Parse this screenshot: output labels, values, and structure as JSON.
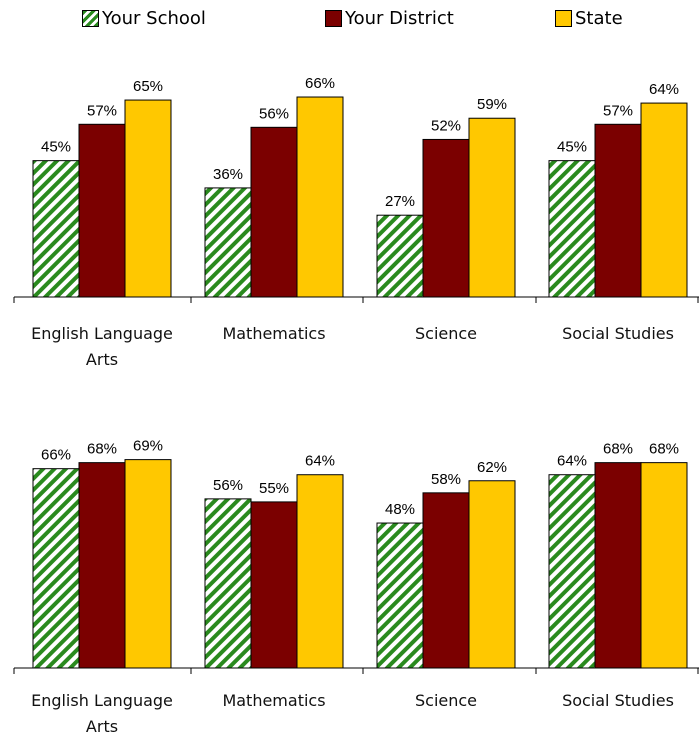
{
  "legend": {
    "items": [
      {
        "label": "Your School",
        "color": "#2a8a1e"
      },
      {
        "label": "Your District",
        "color": "#7b0000"
      },
      {
        "label": "State",
        "color": "#ffc800"
      }
    ]
  },
  "chart_data": [
    {
      "type": "bar",
      "categories": [
        "English Language Arts",
        "Mathematics",
        "Science",
        "Social Studies"
      ],
      "series": [
        {
          "name": "Your School",
          "values": [
            45,
            36,
            27,
            45
          ],
          "color": "#2a8a1e",
          "pattern": "diagonal-stripes"
        },
        {
          "name": "Your District",
          "values": [
            57,
            56,
            52,
            57
          ],
          "color": "#7b0000"
        },
        {
          "name": "State",
          "values": [
            65,
            66,
            59,
            64
          ],
          "color": "#ffc800"
        }
      ],
      "value_suffix": "%",
      "ylim": [
        0,
        100
      ],
      "grid": false
    },
    {
      "type": "bar",
      "categories": [
        "English Language Arts",
        "Mathematics",
        "Science",
        "Social Studies"
      ],
      "series": [
        {
          "name": "Your School",
          "values": [
            66,
            56,
            48,
            64
          ],
          "color": "#2a8a1e",
          "pattern": "diagonal-stripes"
        },
        {
          "name": "Your District",
          "values": [
            68,
            55,
            58,
            68
          ],
          "color": "#7b0000"
        },
        {
          "name": "State",
          "values": [
            69,
            64,
            62,
            68
          ],
          "color": "#ffc800"
        }
      ],
      "value_suffix": "%",
      "ylim": [
        0,
        100
      ],
      "grid": false
    }
  ]
}
